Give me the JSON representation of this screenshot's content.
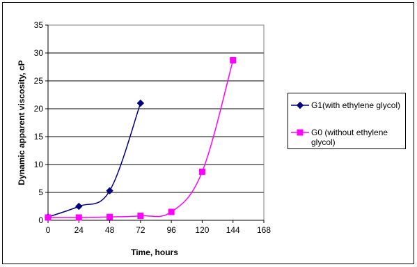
{
  "chart_data": {
    "type": "line",
    "title": "",
    "xlabel": "Time, hours",
    "ylabel": "Dynamic apparent viscosity, cP",
    "xlim": [
      0,
      168
    ],
    "ylim": [
      0,
      35
    ],
    "x_ticks": [
      "0",
      "24",
      "48",
      "72",
      "96",
      "120",
      "144",
      "168"
    ],
    "y_ticks": [
      "0",
      "5",
      "10",
      "15",
      "20",
      "25",
      "30",
      "35"
    ],
    "grid": "horizontal",
    "legend_position": "right",
    "series": [
      {
        "name": "G1(with ethylene glycol)",
        "legend_lines": [
          "G1(with ethylene glycol)"
        ],
        "color": "#000080",
        "marker": "diamond",
        "x": [
          0,
          24,
          48,
          72
        ],
        "y": [
          0.6,
          2.5,
          5.3,
          21.0
        ]
      },
      {
        "name": "G0 (without ethylene glycol)",
        "legend_lines": [
          "G0 (without ethylene",
          "glycol)"
        ],
        "color": "#ff00ff",
        "marker": "square",
        "x": [
          0,
          24,
          48,
          72,
          96,
          120,
          144
        ],
        "y": [
          0.5,
          0.5,
          0.6,
          0.8,
          1.5,
          8.7,
          28.7
        ]
      }
    ]
  }
}
